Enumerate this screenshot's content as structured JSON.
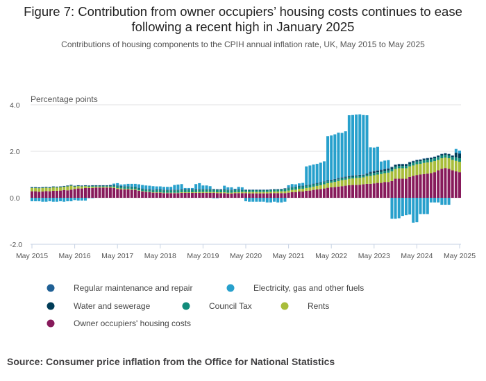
{
  "title": "Figure 7: Contribution from owner occupiers’ housing costs continues to ease following a recent high in January 2025",
  "subtitle": "Contributions of housing components to the CPIH annual inflation rate, UK, May 2015 to May 2025",
  "source": "Source: Consumer price inflation from the Office for National Statistics",
  "chart_data": {
    "type": "bar",
    "stacked": true,
    "ylabel": "Percentage points",
    "ylim": [
      -2.0,
      4.0
    ],
    "yticks": [
      "4.0",
      "2.0",
      "0.0",
      "-2.0"
    ],
    "ytick_values": [
      4,
      2,
      0,
      -2
    ],
    "grid": true,
    "legend_position": "bottom",
    "start_month": "May 2015",
    "end_month": "May 2025",
    "xtick_labels": [
      "May 2015",
      "May 2016",
      "May 2017",
      "May 2018",
      "May 2019",
      "May 2020",
      "May 2021",
      "May 2022",
      "May 2023",
      "May 2024",
      "May 2025"
    ],
    "series": [
      {
        "name": "Owner occupiers' housing costs",
        "color": "#871a5b",
        "values": [
          0.28,
          0.28,
          0.26,
          0.27,
          0.29,
          0.28,
          0.3,
          0.3,
          0.31,
          0.33,
          0.32,
          0.35,
          0.38,
          0.4,
          0.4,
          0.42,
          0.42,
          0.42,
          0.44,
          0.44,
          0.44,
          0.44,
          0.44,
          0.42,
          0.38,
          0.36,
          0.36,
          0.36,
          0.34,
          0.34,
          0.3,
          0.27,
          0.25,
          0.24,
          0.22,
          0.22,
          0.22,
          0.2,
          0.2,
          0.2,
          0.2,
          0.2,
          0.21,
          0.21,
          0.21,
          0.21,
          0.21,
          0.21,
          0.21,
          0.21,
          0.21,
          0.21,
          0.2,
          0.2,
          0.2,
          0.18,
          0.18,
          0.2,
          0.2,
          0.2,
          0.2,
          0.19,
          0.19,
          0.19,
          0.19,
          0.19,
          0.19,
          0.2,
          0.2,
          0.2,
          0.2,
          0.2,
          0.22,
          0.24,
          0.24,
          0.27,
          0.27,
          0.3,
          0.31,
          0.34,
          0.36,
          0.38,
          0.4,
          0.43,
          0.45,
          0.46,
          0.48,
          0.5,
          0.52,
          0.54,
          0.55,
          0.55,
          0.56,
          0.58,
          0.6,
          0.6,
          0.62,
          0.64,
          0.64,
          0.68,
          0.68,
          0.72,
          0.82,
          0.82,
          0.82,
          0.82,
          0.9,
          0.94,
          0.98,
          1.0,
          1.02,
          1.04,
          1.06,
          1.1,
          1.18,
          1.25,
          1.28,
          1.25,
          1.18,
          1.14,
          1.1
        ]
      },
      {
        "name": "Rents",
        "color": "#a8bd3a",
        "values": [
          0.14,
          0.14,
          0.15,
          0.15,
          0.14,
          0.14,
          0.15,
          0.14,
          0.14,
          0.14,
          0.17,
          0.17,
          0.1,
          0.1,
          0.09,
          0.08,
          0.06,
          0.06,
          0.04,
          0.04,
          0.04,
          0.04,
          0.04,
          0.04,
          0.04,
          0.04,
          0.03,
          0.03,
          0.03,
          0.03,
          0.02,
          0.02,
          0.02,
          0.02,
          0.02,
          0.02,
          0.02,
          0.02,
          0.02,
          0.02,
          0.02,
          0.02,
          0.03,
          0.03,
          0.03,
          0.03,
          0.03,
          0.04,
          0.04,
          0.04,
          0.04,
          0.04,
          0.04,
          0.04,
          0.04,
          0.04,
          0.04,
          0.04,
          0.04,
          0.05,
          0.05,
          0.06,
          0.06,
          0.06,
          0.06,
          0.06,
          0.06,
          0.06,
          0.07,
          0.07,
          0.08,
          0.08,
          0.09,
          0.1,
          0.11,
          0.12,
          0.12,
          0.12,
          0.13,
          0.14,
          0.15,
          0.16,
          0.18,
          0.2,
          0.2,
          0.22,
          0.24,
          0.26,
          0.26,
          0.28,
          0.28,
          0.3,
          0.3,
          0.3,
          0.32,
          0.34,
          0.35,
          0.36,
          0.38,
          0.38,
          0.4,
          0.42,
          0.42,
          0.45,
          0.45,
          0.45,
          0.45,
          0.45,
          0.46,
          0.46,
          0.48,
          0.48,
          0.48,
          0.48,
          0.45,
          0.45,
          0.45,
          0.45,
          0.45,
          0.45,
          0.45
        ]
      },
      {
        "name": "Council Tax",
        "color": "#118c7b",
        "values": [
          0.02,
          0.02,
          0.02,
          0.02,
          0.02,
          0.02,
          0.02,
          0.02,
          0.02,
          0.02,
          0.02,
          0.02,
          0.02,
          0.02,
          0.02,
          0.02,
          0.03,
          0.04,
          0.04,
          0.04,
          0.04,
          0.04,
          0.04,
          0.06,
          0.08,
          0.08,
          0.08,
          0.08,
          0.08,
          0.08,
          0.08,
          0.08,
          0.08,
          0.08,
          0.08,
          0.1,
          0.1,
          0.1,
          0.1,
          0.1,
          0.1,
          0.1,
          0.1,
          0.1,
          0.1,
          0.1,
          0.1,
          0.1,
          0.1,
          0.1,
          0.1,
          0.1,
          0.1,
          0.1,
          0.1,
          0.1,
          0.1,
          0.1,
          0.1,
          0.08,
          0.08,
          0.08,
          0.08,
          0.08,
          0.08,
          0.08,
          0.08,
          0.08,
          0.08,
          0.08,
          0.08,
          0.1,
          0.1,
          0.1,
          0.1,
          0.1,
          0.1,
          0.1,
          0.1,
          0.1,
          0.1,
          0.1,
          0.1,
          0.08,
          0.08,
          0.08,
          0.08,
          0.08,
          0.08,
          0.08,
          0.08,
          0.08,
          0.08,
          0.08,
          0.08,
          0.1,
          0.1,
          0.1,
          0.1,
          0.1,
          0.1,
          0.1,
          0.1,
          0.1,
          0.1,
          0.1,
          0.1,
          0.12,
          0.12,
          0.12,
          0.12,
          0.12,
          0.12,
          0.12,
          0.12,
          0.12,
          0.12,
          0.12,
          0.12,
          0.15,
          0.15
        ]
      },
      {
        "name": "Water and sewerage",
        "color": "#003c57",
        "values": [
          0.01,
          0.01,
          0.01,
          0.01,
          0.01,
          0.01,
          0.01,
          0.01,
          0.01,
          0.01,
          0.01,
          0.01,
          0.01,
          0.01,
          0.01,
          0.01,
          0.01,
          0.01,
          0.01,
          0.01,
          0.01,
          0.01,
          0.01,
          0.02,
          0.02,
          0.02,
          0.02,
          0.02,
          0.02,
          0.02,
          0.02,
          0.02,
          0.02,
          0.02,
          0.02,
          0.02,
          0.02,
          0.02,
          0.02,
          0.02,
          0.02,
          0.02,
          0.02,
          0.02,
          0.02,
          0.02,
          0.02,
          0.02,
          0.02,
          0.02,
          0.02,
          0.02,
          0.02,
          0.02,
          0.02,
          0.02,
          0.02,
          0.02,
          0.02,
          0.01,
          0.01,
          0.01,
          0.01,
          0.01,
          0.01,
          0.01,
          0.01,
          0.01,
          0.01,
          0.01,
          0.01,
          0.02,
          0.02,
          0.02,
          0.02,
          0.02,
          0.02,
          0.02,
          0.02,
          0.02,
          0.02,
          0.02,
          0.02,
          0.03,
          0.03,
          0.03,
          0.03,
          0.03,
          0.03,
          0.03,
          0.03,
          0.03,
          0.03,
          0.03,
          0.03,
          0.06,
          0.07,
          0.07,
          0.07,
          0.07,
          0.07,
          0.07,
          0.07,
          0.07,
          0.07,
          0.07,
          0.07,
          0.06,
          0.06,
          0.06,
          0.06,
          0.06,
          0.06,
          0.06,
          0.06,
          0.06,
          0.06,
          0.06,
          0.06,
          0.2,
          0.2
        ]
      },
      {
        "name": "Regular maintenance and repair",
        "color": "#206095",
        "values": [
          0.01,
          0.01,
          0.01,
          0.01,
          0.01,
          0.01,
          0.01,
          0.01,
          0.01,
          0.01,
          0.01,
          0.01,
          0.01,
          0.01,
          0.01,
          0.01,
          0.01,
          0.01,
          0.01,
          0.01,
          0.01,
          0.01,
          0.01,
          0.01,
          0.01,
          0.01,
          0.01,
          0.01,
          0.01,
          0.01,
          0.01,
          0.01,
          0.01,
          0.01,
          0.01,
          0.01,
          0.01,
          0.01,
          0.01,
          0.01,
          0.01,
          0.01,
          0.01,
          0.01,
          0.01,
          0.01,
          0.01,
          0.01,
          0.01,
          0.01,
          0.01,
          0.01,
          0.01,
          0.01,
          0.01,
          0.01,
          0.01,
          0.01,
          0.01,
          0.01,
          0.01,
          0.01,
          0.01,
          0.01,
          0.01,
          0.01,
          0.01,
          0.01,
          0.01,
          0.01,
          0.01,
          0.01,
          0.01,
          0.01,
          0.01,
          0.01,
          0.01,
          0.01,
          0.01,
          0.01,
          0.01,
          0.01,
          0.01,
          0.01,
          0.02,
          0.02,
          0.02,
          0.02,
          0.02,
          0.02,
          0.02,
          0.02,
          0.02,
          0.02,
          0.02,
          0.02,
          0.02,
          0.02,
          0.02,
          0.02,
          0.02,
          0.02,
          0.02,
          0.02,
          0.02,
          0.02,
          0.02,
          0.02,
          0.01,
          0.01,
          0.01,
          0.01,
          0.01,
          0.01,
          0.01,
          0.01,
          0.01,
          0.01,
          0.01,
          0.01,
          0.01
        ]
      },
      {
        "name": "Electricity, gas and other fuels",
        "color": "#27a0cc",
        "values": [
          -0.15,
          -0.15,
          -0.15,
          -0.17,
          -0.17,
          -0.15,
          -0.17,
          -0.17,
          -0.15,
          -0.17,
          -0.15,
          -0.15,
          -0.1,
          -0.12,
          -0.12,
          -0.12,
          -0.01,
          -0.01,
          0,
          0,
          0,
          0,
          0.02,
          0.06,
          0.1,
          0.06,
          0.08,
          0.1,
          0.12,
          0.12,
          0.15,
          0.15,
          0.15,
          0.15,
          0.15,
          0.12,
          0.12,
          0.12,
          0.12,
          0.12,
          0.2,
          0.22,
          0.22,
          0.05,
          0.05,
          0.05,
          0.22,
          0.25,
          0.15,
          0.15,
          0.12,
          -0.02,
          -0.02,
          0,
          0.15,
          0.1,
          0.1,
          0.02,
          0.1,
          0.1,
          -0.15,
          -0.17,
          -0.17,
          -0.17,
          -0.17,
          -0.17,
          -0.2,
          -0.2,
          -0.17,
          -0.2,
          -0.2,
          -0.17,
          0.1,
          0.12,
          0.1,
          0.1,
          0.12,
          0.8,
          0.82,
          0.82,
          0.82,
          0.84,
          0.86,
          1.9,
          1.9,
          1.92,
          1.95,
          1.9,
          1.95,
          2.6,
          2.6,
          2.6,
          2.6,
          2.55,
          2.5,
          1.05,
          1.0,
          1.0,
          0.35,
          0.35,
          0.35,
          -0.9,
          -0.9,
          -0.88,
          -0.78,
          -0.75,
          -0.72,
          -1.07,
          -1.05,
          -0.7,
          -0.7,
          -0.7,
          -0.2,
          -0.2,
          -0.2,
          -0.3,
          -0.3,
          -0.3,
          0.0,
          0.15,
          0.12
        ]
      }
    ]
  },
  "legend": [
    {
      "label": "Regular maintenance and repair",
      "color": "#206095"
    },
    {
      "label": "Electricity, gas and other fuels",
      "color": "#27a0cc"
    },
    {
      "label": "Water and sewerage",
      "color": "#003c57"
    },
    {
      "label": "Council Tax",
      "color": "#118c7b"
    },
    {
      "label": "Rents",
      "color": "#a8bd3a"
    },
    {
      "label": "Owner occupiers' housing costs",
      "color": "#871a5b"
    }
  ]
}
